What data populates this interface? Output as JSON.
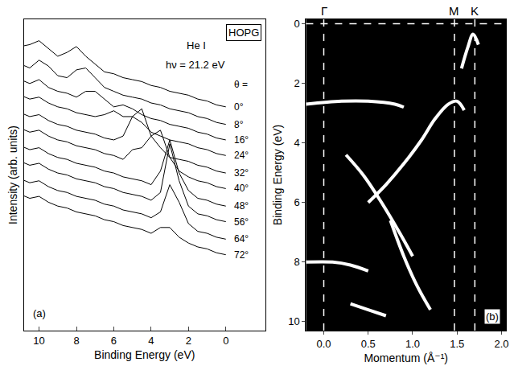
{
  "chart_data": [
    {
      "type": "line",
      "label": "(a)",
      "sample": "HOPG",
      "source": "He I",
      "photon_energy": "hν = 21.2 eV",
      "angle_header": "θ =",
      "x_label": "Binding Energy (eV)",
      "y_label": "Intensity (arb. units)",
      "xlim": [
        10.8,
        -2.1
      ],
      "xticks": [
        10,
        8,
        6,
        4,
        2,
        0
      ],
      "ylim": [
        0,
        16
      ],
      "grid": false,
      "tick_labels": "x",
      "color": "#000000",
      "x": [
        11,
        10.5,
        10,
        9.5,
        9,
        8.5,
        8,
        7.5,
        7,
        6.5,
        6,
        5.5,
        5,
        4.5,
        4,
        3.5,
        3,
        2.5,
        2,
        1.5,
        1,
        0.5,
        0
      ],
      "series": [
        {
          "name": "0°",
          "values": [
            14.6,
            14.7,
            14.9,
            14.5,
            14.1,
            14.3,
            14.6,
            14.1,
            13.7,
            13.3,
            13.2,
            13.0,
            12.9,
            12.8,
            12.6,
            12.5,
            12.3,
            12.2,
            12.1,
            11.9,
            11.8,
            11.6,
            11.5
          ]
        },
        {
          "name": "8°",
          "values": [
            13.7,
            13.5,
            13.9,
            13.6,
            13.1,
            13.0,
            13.4,
            13.5,
            13.0,
            12.5,
            12.3,
            12.1,
            12.0,
            11.9,
            11.7,
            11.6,
            11.4,
            11.3,
            11.2,
            11.0,
            10.9,
            10.7,
            10.6
          ]
        },
        {
          "name": "16°",
          "values": [
            12.9,
            12.7,
            12.9,
            12.5,
            12.3,
            12.2,
            12.0,
            12.3,
            12.3,
            11.9,
            11.5,
            11.6,
            11.4,
            11.1,
            10.9,
            10.8,
            10.6,
            10.5,
            10.4,
            10.2,
            10.1,
            9.9,
            9.8
          ]
        },
        {
          "name": "24°",
          "values": [
            12.1,
            11.9,
            12.0,
            11.7,
            11.5,
            11.4,
            11.2,
            11.1,
            11.0,
            11.1,
            11.3,
            11.0,
            11.0,
            10.7,
            10.2,
            10.0,
            9.8,
            9.7,
            9.6,
            9.4,
            9.3,
            9.1,
            9.0
          ]
        },
        {
          "name": "32°",
          "values": [
            11.2,
            11.0,
            11.1,
            10.8,
            10.6,
            10.5,
            10.3,
            10.2,
            10.1,
            9.9,
            9.8,
            10.0,
            11.0,
            11.4,
            10.0,
            9.4,
            8.9,
            8.8,
            8.7,
            8.5,
            8.4,
            8.2,
            8.1
          ]
        },
        {
          "name": "40°",
          "values": [
            10.4,
            10.2,
            10.3,
            10.0,
            9.8,
            9.7,
            9.5,
            9.4,
            9.3,
            9.1,
            9.0,
            8.8,
            9.3,
            9.4,
            10.0,
            10.3,
            8.9,
            8.2,
            7.9,
            7.7,
            7.6,
            7.4,
            7.3
          ]
        },
        {
          "name": "48°",
          "values": [
            9.5,
            9.3,
            9.4,
            9.1,
            8.9,
            8.8,
            8.6,
            8.5,
            8.4,
            8.2,
            8.1,
            7.9,
            7.8,
            7.7,
            7.5,
            8.2,
            9.8,
            8.1,
            7.2,
            6.8,
            6.7,
            6.5,
            6.4
          ]
        },
        {
          "name": "56°",
          "values": [
            8.7,
            8.5,
            8.6,
            8.3,
            8.1,
            8.0,
            7.8,
            7.7,
            7.6,
            7.4,
            7.3,
            7.1,
            7.0,
            6.9,
            6.7,
            7.1,
            9.6,
            7.7,
            6.4,
            6.0,
            5.9,
            5.7,
            5.6
          ]
        },
        {
          "name": "64°",
          "values": [
            7.8,
            7.6,
            7.7,
            7.4,
            7.2,
            7.1,
            6.9,
            6.8,
            6.7,
            6.5,
            6.4,
            6.2,
            6.1,
            6.0,
            5.8,
            6.1,
            7.5,
            6.6,
            5.5,
            5.1,
            5.0,
            4.8,
            4.7
          ]
        },
        {
          "name": "72°",
          "values": [
            7.0,
            6.8,
            6.9,
            6.6,
            6.4,
            6.3,
            6.1,
            6.0,
            5.9,
            5.7,
            5.6,
            5.4,
            5.3,
            5.2,
            5.0,
            5.3,
            5.3,
            4.8,
            4.5,
            4.3,
            4.2,
            4.0,
            3.9
          ]
        }
      ]
    },
    {
      "type": "line",
      "label": "(b)",
      "x_label": "Momentum (Å⁻¹)",
      "y_label": "Binding Energy (eV)",
      "xlim": [
        -0.2,
        2.05
      ],
      "xticks": [
        {
          "value": 0,
          "label": "0.0"
        },
        0.5,
        {
          "value": 1,
          "label": "1.0"
        },
        1.5,
        {
          "value": 2,
          "label": "2.0"
        }
      ],
      "ylim": [
        10.3,
        -0.15
      ],
      "yticks": [
        0,
        2,
        4,
        6,
        8,
        10
      ],
      "grid": false,
      "color": "#ffffff",
      "points": [
        {
          "label": "Γ",
          "x": 0.0
        },
        {
          "label": "M",
          "x": 1.47
        },
        {
          "label": "K",
          "x": 1.7
        }
      ],
      "hline": 0,
      "series": [
        {
          "x": [
            -0.2,
            0.2,
            0.5,
            0.8,
            0.9
          ],
          "values": [
            2.7,
            2.6,
            2.6,
            2.7,
            2.8
          ]
        },
        {
          "x": [
            -0.2,
            0.1,
            0.3,
            0.5
          ],
          "values": [
            8.0,
            8.0,
            8.1,
            8.3
          ]
        },
        {
          "x": [
            0.25,
            0.45,
            0.65,
            0.85,
            1.0
          ],
          "values": [
            4.4,
            5.1,
            6.0,
            7.0,
            7.8
          ]
        },
        {
          "x": [
            0.5,
            0.7,
            0.9,
            1.1,
            1.25,
            1.4,
            1.5,
            1.58
          ],
          "values": [
            6.0,
            5.4,
            4.7,
            3.9,
            3.2,
            2.7,
            2.6,
            2.9
          ]
        },
        {
          "x": [
            0.75,
            0.9,
            1.05,
            1.2
          ],
          "values": [
            6.6,
            7.8,
            8.8,
            9.6
          ]
        },
        {
          "x": [
            1.55,
            1.62,
            1.68,
            1.74
          ],
          "values": [
            1.5,
            0.8,
            0.35,
            0.7
          ]
        },
        {
          "x": [
            0.3,
            0.5,
            0.7
          ],
          "values": [
            9.4,
            9.6,
            9.8
          ]
        }
      ]
    }
  ]
}
